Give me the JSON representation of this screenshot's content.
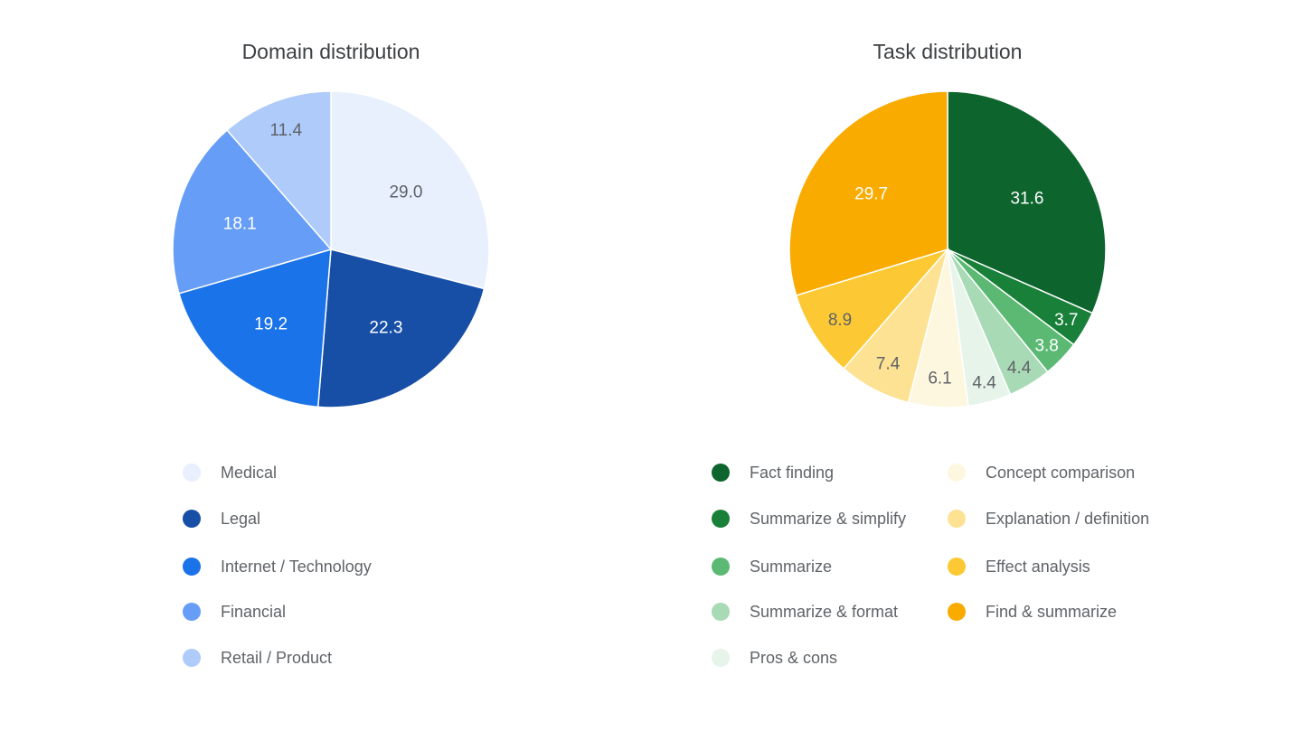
{
  "chart_data": [
    {
      "type": "pie",
      "title": "Domain distribution",
      "legend_placement": "bottom",
      "categories": [
        "Medical",
        "Legal",
        "Internet / Technology",
        "Financial",
        "Retail / Product"
      ],
      "values": [
        29.0,
        22.3,
        19.2,
        18.1,
        11.4
      ],
      "labels": [
        "29.0",
        "22.3",
        "19.2",
        "18.1",
        "11.4"
      ],
      "colors": [
        "#e8f0fe",
        "#174ea6",
        "#1a73e8",
        "#669df6",
        "#aecbfa"
      ],
      "label_colors": [
        "#5f6368",
        "#ffffff",
        "#ffffff",
        "#ffffff",
        "#5f6368"
      ]
    },
    {
      "type": "pie",
      "title": "Task distribution",
      "legend_placement": "bottom",
      "categories": [
        "Fact finding",
        "Summarize & simplify",
        "Summarize",
        "Summarize & format",
        "Pros & cons",
        "Concept comparison",
        "Explanation / definition",
        "Effect analysis",
        "Find & summarize"
      ],
      "values": [
        31.6,
        3.7,
        3.8,
        4.4,
        4.4,
        6.1,
        7.4,
        8.9,
        29.7
      ],
      "labels": [
        "31.6",
        "3.7",
        "3.8",
        "4.4",
        "4.4",
        "6.1",
        "7.4",
        "8.9",
        "29.7"
      ],
      "colors": [
        "#0d652d",
        "#188038",
        "#5bb974",
        "#a8dab5",
        "#e6f4ea",
        "#fef7e0",
        "#fde293",
        "#fcc934",
        "#f9ab00"
      ],
      "label_colors": [
        "#ffffff",
        "#ffffff",
        "#ffffff",
        "#5f6368",
        "#5f6368",
        "#5f6368",
        "#5f6368",
        "#5f6368",
        "#ffffff"
      ]
    }
  ]
}
